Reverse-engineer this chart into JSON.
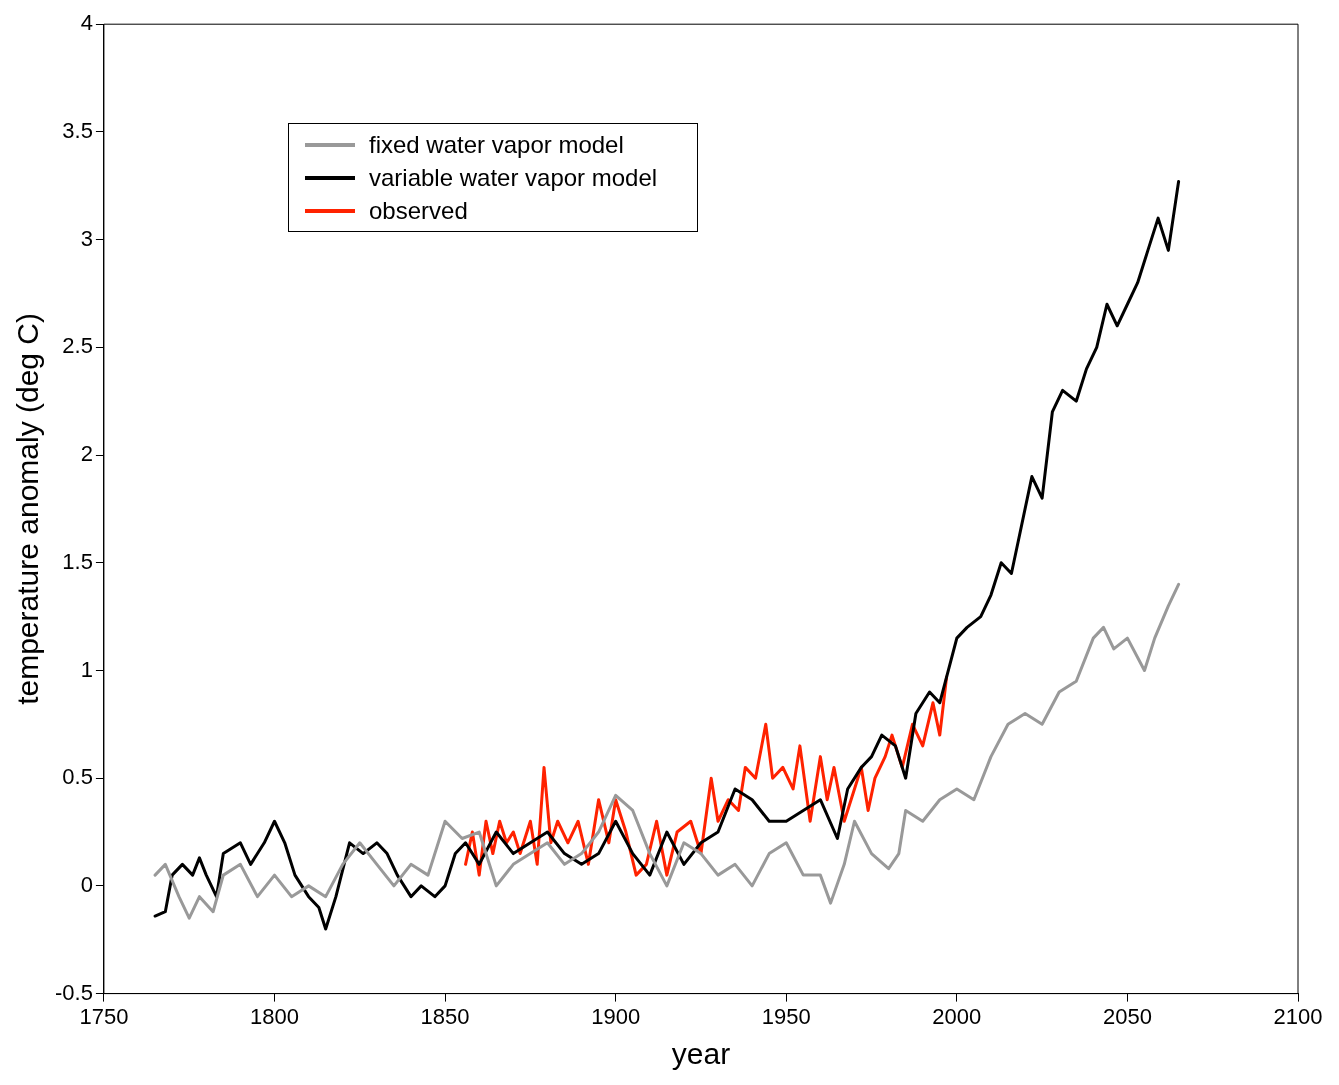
{
  "chart_data": {
    "type": "line",
    "xlabel": "year",
    "ylabel": "temperature anomaly (deg C)",
    "xlim": [
      1750,
      2100
    ],
    "xticks": [
      1750,
      1800,
      1850,
      1900,
      1950,
      2000,
      2050,
      2100
    ],
    "ylim": [
      -0.5,
      4
    ],
    "yticks": [
      -0.5,
      0,
      0.5,
      1,
      1.5,
      2,
      2.5,
      3,
      3.5,
      4
    ],
    "grid": false,
    "legend": "top left",
    "marker": "none",
    "line_style": "solid",
    "series": [
      {
        "name": "fixed water vapor model",
        "color": "#999999",
        "x": [
          1765,
          1768,
          1772,
          1775,
          1778,
          1782,
          1785,
          1790,
          1795,
          1800,
          1805,
          1810,
          1815,
          1820,
          1825,
          1830,
          1835,
          1840,
          1845,
          1850,
          1855,
          1860,
          1865,
          1870,
          1875,
          1880,
          1885,
          1890,
          1895,
          1900,
          1905,
          1910,
          1915,
          1920,
          1925,
          1930,
          1935,
          1940,
          1945,
          1950,
          1955,
          1960,
          1963,
          1967,
          1970,
          1975,
          1980,
          1983,
          1985,
          1990,
          1995,
          2000,
          2005,
          2010,
          2015,
          2020,
          2025,
          2030,
          2035,
          2040,
          2043,
          2046,
          2050,
          2055,
          2058,
          2062,
          2065
        ],
        "values": [
          0.05,
          0.1,
          -0.05,
          -0.15,
          -0.05,
          -0.12,
          0.05,
          0.1,
          -0.05,
          0.05,
          -0.05,
          0.0,
          -0.05,
          0.1,
          0.2,
          0.1,
          0.0,
          0.1,
          0.05,
          0.3,
          0.22,
          0.25,
          0.0,
          0.1,
          0.15,
          0.2,
          0.1,
          0.15,
          0.25,
          0.42,
          0.35,
          0.15,
          0.0,
          0.2,
          0.15,
          0.05,
          0.1,
          0.0,
          0.15,
          0.2,
          0.05,
          0.05,
          -0.08,
          0.1,
          0.3,
          0.15,
          0.08,
          0.15,
          0.35,
          0.3,
          0.4,
          0.45,
          0.4,
          0.6,
          0.75,
          0.8,
          0.75,
          0.9,
          0.95,
          1.15,
          1.2,
          1.1,
          1.15,
          1.0,
          1.15,
          1.3,
          1.4
        ]
      },
      {
        "name": "variable water vapor model",
        "color": "#000000",
        "x": [
          1765,
          1768,
          1770,
          1773,
          1776,
          1778,
          1780,
          1783,
          1785,
          1790,
          1793,
          1797,
          1800,
          1803,
          1806,
          1810,
          1813,
          1815,
          1818,
          1822,
          1826,
          1830,
          1833,
          1836,
          1840,
          1843,
          1847,
          1850,
          1853,
          1856,
          1860,
          1865,
          1870,
          1875,
          1880,
          1885,
          1890,
          1895,
          1900,
          1905,
          1910,
          1915,
          1920,
          1925,
          1930,
          1935,
          1940,
          1945,
          1950,
          1955,
          1960,
          1965,
          1968,
          1972,
          1975,
          1978,
          1982,
          1985,
          1988,
          1992,
          1995,
          2000,
          2003,
          2007,
          2010,
          2013,
          2016,
          2018,
          2022,
          2025,
          2028,
          2031,
          2035,
          2038,
          2041,
          2044,
          2047,
          2050,
          2053,
          2056,
          2059,
          2062,
          2065
        ],
        "values": [
          -0.14,
          -0.12,
          0.05,
          0.1,
          0.05,
          0.13,
          0.05,
          -0.05,
          0.15,
          0.2,
          0.1,
          0.2,
          0.3,
          0.2,
          0.05,
          -0.05,
          -0.1,
          -0.2,
          -0.05,
          0.2,
          0.15,
          0.2,
          0.15,
          0.05,
          -0.05,
          0.0,
          -0.05,
          0.0,
          0.15,
          0.2,
          0.1,
          0.25,
          0.15,
          0.2,
          0.25,
          0.15,
          0.1,
          0.15,
          0.3,
          0.15,
          0.05,
          0.25,
          0.1,
          0.2,
          0.25,
          0.45,
          0.4,
          0.3,
          0.3,
          0.35,
          0.4,
          0.22,
          0.45,
          0.55,
          0.6,
          0.7,
          0.65,
          0.5,
          0.8,
          0.9,
          0.85,
          1.15,
          1.2,
          1.25,
          1.35,
          1.5,
          1.45,
          1.6,
          1.9,
          1.8,
          2.2,
          2.3,
          2.25,
          2.4,
          2.5,
          2.7,
          2.6,
          2.7,
          2.8,
          2.95,
          3.1,
          2.95,
          3.27
        ]
      },
      {
        "name": "observed",
        "color": "#ff2200",
        "x": [
          1856,
          1858,
          1860,
          1862,
          1864,
          1866,
          1868,
          1870,
          1872,
          1875,
          1877,
          1879,
          1881,
          1883,
          1886,
          1889,
          1892,
          1895,
          1898,
          1900,
          1903,
          1906,
          1909,
          1912,
          1915,
          1918,
          1922,
          1925,
          1928,
          1930,
          1933,
          1936,
          1938,
          1941,
          1944,
          1946,
          1949,
          1952,
          1954,
          1957,
          1960,
          1962,
          1964,
          1967,
          1970,
          1972,
          1974,
          1976,
          1979,
          1981,
          1984,
          1987,
          1990,
          1993,
          1995,
          1997
        ],
        "values": [
          0.1,
          0.25,
          0.05,
          0.3,
          0.15,
          0.3,
          0.2,
          0.25,
          0.15,
          0.3,
          0.1,
          0.55,
          0.2,
          0.3,
          0.2,
          0.3,
          0.1,
          0.4,
          0.2,
          0.4,
          0.25,
          0.05,
          0.1,
          0.3,
          0.05,
          0.25,
          0.3,
          0.15,
          0.5,
          0.3,
          0.4,
          0.35,
          0.55,
          0.5,
          0.75,
          0.5,
          0.55,
          0.45,
          0.65,
          0.3,
          0.6,
          0.4,
          0.55,
          0.3,
          0.45,
          0.55,
          0.35,
          0.5,
          0.6,
          0.7,
          0.55,
          0.75,
          0.65,
          0.85,
          0.7,
          0.97
        ]
      }
    ]
  }
}
